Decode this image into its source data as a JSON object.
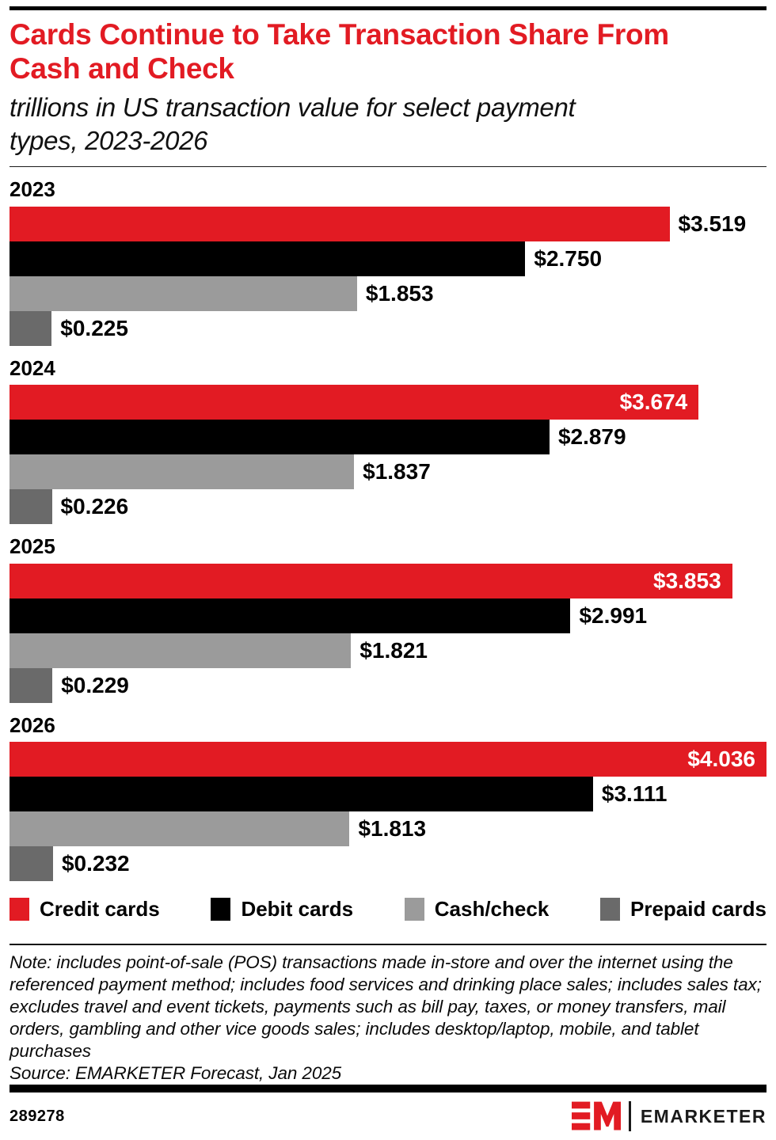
{
  "header": {
    "title_lines": [
      "Cards Continue to Take Transaction Share From",
      "Cash and Check"
    ],
    "subtitle_lines": [
      "trillions in US transaction value for select payment",
      "types, 2023-2026"
    ],
    "title_color": "#e21b23"
  },
  "chart_data": {
    "type": "bar",
    "orientation": "horizontal",
    "title": "Cards Continue to Take Transaction Share From Cash and Check",
    "subtitle": "trillions in US transaction value for select payment types, 2023-2026",
    "unit": "trillions of US dollars",
    "xlabel": "",
    "ylabel": "",
    "xlim": [
      0,
      4.036
    ],
    "grid": false,
    "legend_position": "bottom",
    "value_label_format": "$#.###",
    "categories": [
      "2023",
      "2024",
      "2025",
      "2026"
    ],
    "series": [
      {
        "name": "Credit cards",
        "color": "#e21b23",
        "values": [
          3.519,
          3.674,
          3.853,
          4.036
        ]
      },
      {
        "name": "Debit cards",
        "color": "#000000",
        "values": [
          2.75,
          2.879,
          2.991,
          3.111
        ]
      },
      {
        "name": "Cash/check",
        "color": "#9b9b9b",
        "values": [
          1.853,
          1.837,
          1.821,
          1.813
        ]
      },
      {
        "name": "Prepaid cards",
        "color": "#6a6a6a",
        "values": [
          0.225,
          0.226,
          0.229,
          0.232
        ]
      }
    ]
  },
  "legend": {
    "items": [
      {
        "label": "Credit cards",
        "color": "#e21b23"
      },
      {
        "label": "Debit cards",
        "color": "#000000"
      },
      {
        "label": "Cash/check",
        "color": "#9b9b9b"
      },
      {
        "label": "Prepaid cards",
        "color": "#6a6a6a"
      }
    ]
  },
  "note": {
    "text": "Note: includes point-of-sale (POS) transactions made in-store and over the internet using the referenced payment method; includes food services and drinking place sales; includes sales tax; excludes travel and event tickets, payments such as bill pay, taxes, or money transfers, mail orders, gambling and other vice goods sales; includes desktop/laptop, mobile, and tablet purchases",
    "source": "Source: EMARKETER Forecast, Jan 2025"
  },
  "footer": {
    "chart_id": "289278",
    "brand_name": "EMARKETER",
    "logo_monogram": "EM",
    "brand_color": "#e21b23"
  }
}
